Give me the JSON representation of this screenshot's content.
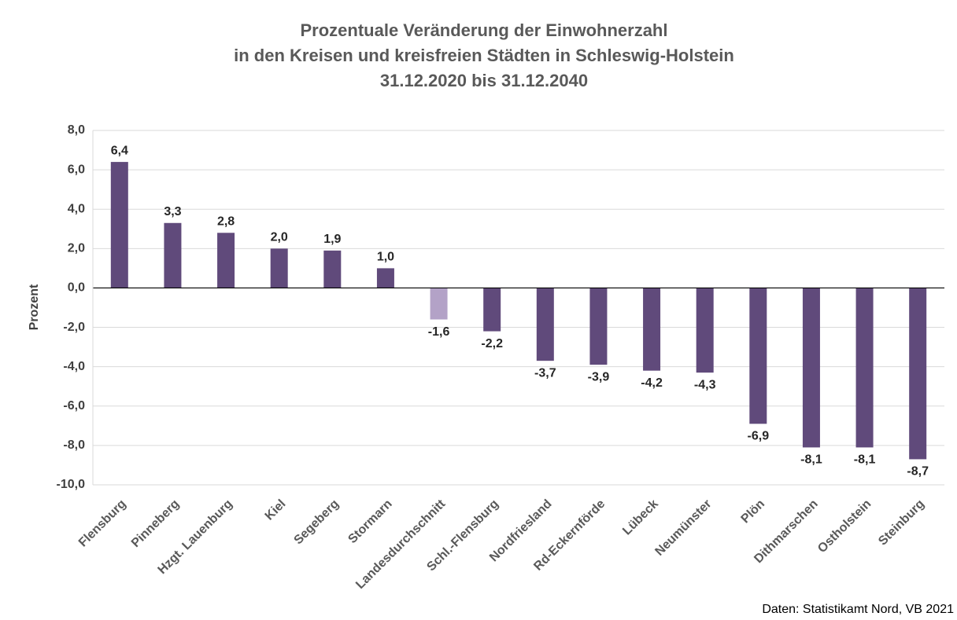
{
  "chart_data": {
    "type": "bar",
    "title": [
      "Prozentuale Veränderung der Einwohnerzahl",
      "in den Kreisen und kreisfreien Städten in Schleswig-Holstein",
      "31.12.2020 bis 31.12.2040"
    ],
    "ylabel": "Prozent",
    "source": "Daten: Statistikamt Nord, VB 2021",
    "categories": [
      "Flensburg",
      "Pinneberg",
      "Hzgt. Lauenburg",
      "Kiel",
      "Segeberg",
      "Stormarn",
      "Landesdurchschnitt",
      "Schl.-Flensburg",
      "Nordfriesland",
      "Rd-Eckernförde",
      "Lübeck",
      "Neumünster",
      "Plön",
      "Dithmarschen",
      "Ostholstein",
      "Steinburg"
    ],
    "values": [
      6.4,
      3.3,
      2.8,
      2.0,
      1.9,
      1.0,
      -1.6,
      -2.2,
      -3.7,
      -3.9,
      -4.2,
      -4.3,
      -6.9,
      -8.1,
      -8.1,
      -8.7
    ],
    "value_labels": [
      "6,4",
      "3,3",
      "2,8",
      "2,0",
      "1,9",
      "1,0",
      "-1,6",
      "-2,2",
      "-3,7",
      "-3,9",
      "-4,2",
      "-4,3",
      "-6,9",
      "-8,1",
      "-8,1",
      "-8,7"
    ],
    "colors": [
      "#604a7b",
      "#604a7b",
      "#604a7b",
      "#604a7b",
      "#604a7b",
      "#604a7b",
      "#b3a2c7",
      "#604a7b",
      "#604a7b",
      "#604a7b",
      "#604a7b",
      "#604a7b",
      "#604a7b",
      "#604a7b",
      "#604a7b",
      "#604a7b"
    ],
    "ylim": [
      -10,
      8
    ],
    "yticks": [
      {
        "value": -10,
        "label": "-10,0"
      },
      {
        "value": -8,
        "label": "-8,0"
      },
      {
        "value": -6,
        "label": "-6,0"
      },
      {
        "value": -4,
        "label": "-4,0"
      },
      {
        "value": -2,
        "label": "-2,0"
      },
      {
        "value": 0,
        "label": "0,0"
      },
      {
        "value": 2,
        "label": "2,0"
      },
      {
        "value": 4,
        "label": "4,0"
      },
      {
        "value": 6,
        "label": "6,0"
      },
      {
        "value": 8,
        "label": "8,0"
      }
    ],
    "grid": true
  }
}
